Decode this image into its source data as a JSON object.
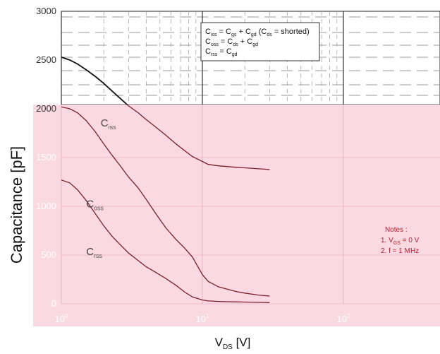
{
  "chart_data": {
    "type": "line",
    "xscale": "log",
    "xlim": [
      1,
      30
    ],
    "ylim": [
      0,
      3000
    ],
    "grid": true,
    "x_ticks": [
      {
        "x": 1,
        "base": "10",
        "exp": "0"
      },
      {
        "x": 10,
        "base": "10",
        "exp": "1"
      },
      {
        "x": 100,
        "base": "10",
        "exp": "2"
      }
    ],
    "x_tick_positions": [
      1,
      10,
      100
    ],
    "y_ticks": [
      0,
      500,
      1000,
      1500,
      2000,
      2500,
      3000
    ],
    "y_tick_labels": [
      "0",
      "500",
      "1000",
      "1500",
      "2000",
      "2500",
      "3000"
    ],
    "ylabel": "Capacitance  [pF]",
    "xlabel_main": "V",
    "xlabel_sub": "DS",
    "xlabel_unit": " [V]",
    "series": [
      {
        "label_main": "C",
        "label_sub": "iss",
        "label_x": 1.9,
        "label_y": 1820,
        "x": [
          1,
          1.15,
          1.3,
          1.5,
          1.75,
          2,
          2.3,
          2.6,
          3,
          3.5,
          4,
          4.7,
          5.5,
          6.5,
          7.5,
          8.5,
          10,
          11,
          13,
          15,
          17.5,
          20,
          25,
          30
        ],
        "y": [
          2530,
          2500,
          2460,
          2400,
          2330,
          2260,
          2180,
          2110,
          2030,
          1960,
          1890,
          1810,
          1730,
          1640,
          1570,
          1510,
          1460,
          1430,
          1415,
          1408,
          1400,
          1395,
          1385,
          1378
        ]
      },
      {
        "label_main": "C",
        "label_sub": "oss",
        "label_x": 1.5,
        "label_y": 990,
        "x": [
          1,
          1.15,
          1.3,
          1.5,
          1.75,
          2,
          2.3,
          2.6,
          3,
          3.5,
          4,
          4.7,
          5.5,
          6.5,
          7.5,
          8.5,
          10,
          11,
          13,
          15,
          17.5,
          20,
          25,
          30
        ],
        "y": [
          2020,
          2000,
          1960,
          1880,
          1760,
          1640,
          1520,
          1420,
          1300,
          1190,
          1070,
          920,
          780,
          660,
          570,
          480,
          300,
          230,
          175,
          150,
          125,
          110,
          90,
          80
        ]
      },
      {
        "label_main": "C",
        "label_sub": "rss",
        "label_x": 1.5,
        "label_y": 500,
        "x": [
          1,
          1.15,
          1.3,
          1.5,
          1.75,
          2,
          2.3,
          2.6,
          3,
          3.5,
          4,
          4.7,
          5.5,
          6.5,
          7.5,
          8.5,
          10,
          11,
          13,
          15,
          17.5,
          20,
          25,
          30
        ],
        "y": [
          1270,
          1240,
          1170,
          1060,
          920,
          800,
          690,
          610,
          520,
          445,
          380,
          320,
          260,
          190,
          120,
          70,
          40,
          30,
          25,
          22,
          20,
          18,
          15,
          12
        ]
      }
    ],
    "legend_box": {
      "lines": [
        [
          {
            "t": "C"
          },
          {
            "s": "iss"
          },
          {
            "t": " = C"
          },
          {
            "s": "gs"
          },
          {
            "t": " + C"
          },
          {
            "s": "gd"
          },
          {
            "t": " (C"
          },
          {
            "s": "ds"
          },
          {
            "t": " = shorted)"
          }
        ],
        [
          {
            "t": "C"
          },
          {
            "s": "oss"
          },
          {
            "t": " = C"
          },
          {
            "s": "ds"
          },
          {
            "t": " + C"
          },
          {
            "s": "gd"
          }
        ],
        [
          {
            "t": "C"
          },
          {
            "s": "rss"
          },
          {
            "t": " = C"
          },
          {
            "s": "gd"
          }
        ]
      ]
    },
    "notes": [
      [
        {
          "t": "Notes :"
        }
      ],
      [
        {
          "t": "1. V"
        },
        {
          "s": "GS"
        },
        {
          "t": " = 0 V"
        }
      ],
      [
        {
          "t": "2. f = 1 MHz"
        }
      ]
    ]
  },
  "colors": {
    "pink_overlay": "#fbd9e2",
    "upper_curve": "#111111",
    "lower_curve": "#7a1f2b",
    "grid": "#9a9a9a",
    "pink_grid": "#e8b3c2",
    "notes": "#b02030"
  }
}
